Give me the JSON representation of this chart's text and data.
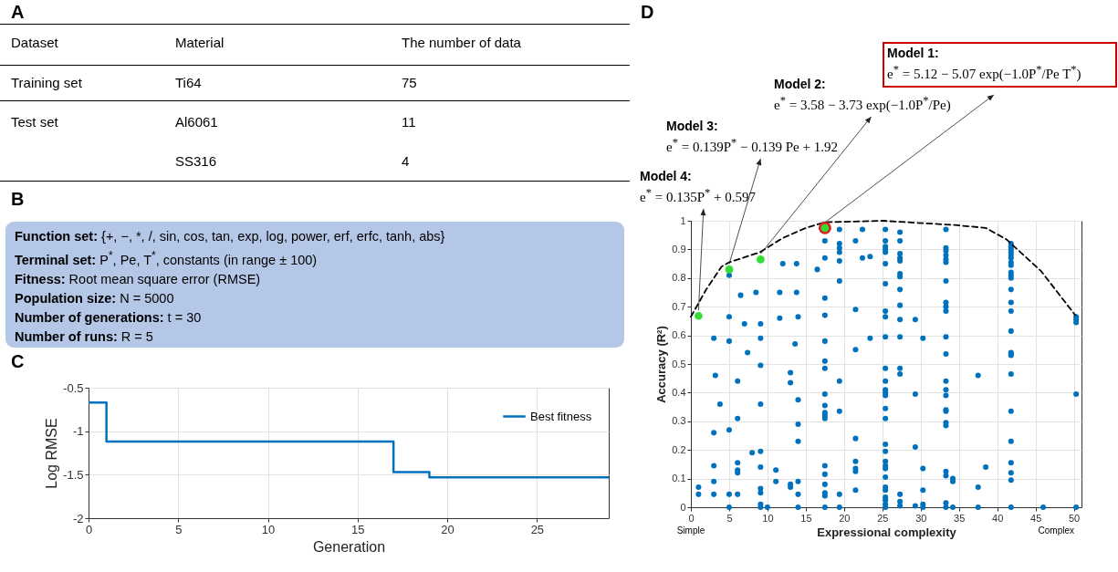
{
  "chart_data": [
    {
      "type": "other",
      "title": "A",
      "categories": [
        "Dataset",
        "Material",
        "The number of data"
      ],
      "annotations": [
        "Training set",
        "Ti64",
        "75",
        "Test set",
        "Al6061",
        "11",
        null,
        "SS316",
        "4"
      ]
    },
    {
      "type": "other",
      "title": "B",
      "annotations": [
        "Function set: {+, −, *, /, sin, cos, tan, exp, log, power, erf, erfc, tanh, abs}",
        "Terminal set: P$^{*}$, Pe, T$^{*}$, constants (in range ± 100)",
        "Fitness: Root mean square error (RMSE)",
        "Population size: N = 5000",
        "Number of generations: t = 30",
        "Number of runs: R = 5"
      ]
    },
    {
      "type": "step",
      "title": "C",
      "xlabel": "Generation",
      "ylabel": "Log RMSE",
      "xlim": [
        0,
        29
      ],
      "xticks": [
        0,
        5,
        10,
        15,
        20,
        25
      ],
      "ylim": [
        -2,
        -0.5
      ],
      "yticks": [
        -2,
        -1.5,
        -1,
        -0.5
      ],
      "grid": true,
      "legend": "top right",
      "series": [
        {
          "name": "Best fitness",
          "color": "#0072bd",
          "x": [
            0,
            1,
            17,
            19,
            29
          ],
          "values": [
            -0.67,
            -1.12,
            -1.47,
            -1.53,
            -1.53
          ]
        }
      ]
    },
    {
      "type": "scatter",
      "title": "D",
      "xlabel": "Expressional complexity",
      "ylabel": "Accuracy (R²)",
      "xlim": [
        0,
        51
      ],
      "xticks": [
        0,
        5,
        10,
        15,
        20,
        25,
        30,
        35,
        40,
        45,
        50
      ],
      "ylim": [
        0,
        1
      ],
      "yticks": [
        0,
        0.1,
        0.2,
        0.3,
        0.4,
        0.5,
        0.6,
        0.7,
        0.8,
        0.9,
        1
      ],
      "grid": true,
      "annotations": [
        {
          "text": "Model 1:\ne$^{*}$ = 5.12 − 5.07 exp(−1.0P$^{*}$/Pe T$^{*}$)",
          "x": 17.5,
          "y": 0.975
        },
        {
          "text": "Model 2:\ne$^{*}$ = 3.58 − 3.73 exp(−1.0P$^{*}$/Pe)",
          "x": 9.1,
          "y": 0.865
        },
        {
          "text": "Model 3:\ne$^{*}$ = 0.139P$^{*}$ − 0.139 Pe + 1.92",
          "x": 5,
          "y": 0.83
        },
        {
          "text": "Model 4:\ne$^{*}$ = 0.135P$^{*}$ + 0.597",
          "x": 1,
          "y": 0.668
        },
        "Simple",
        "Complex"
      ],
      "series": [
        {
          "type": "scatter",
          "marker": "circle",
          "color": "#0072bd",
          "x": [
            1,
            1,
            3,
            3,
            3,
            3,
            3,
            3.2,
            3.8,
            5,
            5,
            5,
            5,
            5,
            5,
            6.1,
            6.1,
            6.1,
            6.1,
            6.1,
            6.1,
            6.5,
            7,
            7.4,
            8,
            8.5,
            9.1,
            9.1,
            9.1,
            9.1,
            9.1,
            9.1,
            9.1,
            9.1,
            9.1,
            9.1,
            10,
            11.1,
            11.1,
            11.6,
            11.6,
            12,
            13,
            13,
            13,
            13,
            13.6,
            13.8,
            13.8,
            14,
            14,
            14,
            14,
            14,
            14,
            14,
            16.5,
            17.5,
            17.5,
            17.5,
            17.5,
            17.5,
            17.5,
            17.5,
            17.5,
            17.5,
            17.5,
            17.5,
            17.5,
            17.5,
            17.5,
            17.5,
            17.5,
            17.5,
            17.5,
            19.4,
            19.4,
            19.4,
            19.4,
            19.4,
            19.4,
            19.4,
            19.4,
            19.4,
            19.4,
            21.5,
            21.5,
            21.5,
            21.5,
            21.5,
            21.5,
            21.5,
            21.5,
            22.4,
            22.4,
            23.4,
            23.4,
            25.4,
            25.4,
            25.4,
            25.4,
            25.4,
            25.4,
            25.4,
            25.4,
            25.4,
            25.4,
            25.4,
            25.4,
            25.4,
            25.4,
            25.4,
            25.4,
            25.4,
            25.4,
            25.4,
            25.4,
            25.4,
            25.4,
            25.4,
            25.4,
            25.4,
            25.4,
            25.4,
            25.4,
            25.4,
            27.3,
            27.3,
            27.3,
            27.3,
            27.3,
            27.3,
            27.3,
            27.3,
            27.3,
            27.3,
            27.3,
            27.3,
            27.3,
            27.3,
            27.3,
            27.3,
            29.3,
            29.3,
            29.3,
            29.3,
            30.3,
            30.3,
            30.3,
            30.3,
            30.3,
            33.3,
            33.3,
            33.3,
            33.3,
            33.3,
            33.3,
            33.3,
            33.3,
            33.3,
            33.3,
            33.3,
            33.3,
            33.3,
            33.3,
            33.3,
            33.3,
            33.3,
            33.3,
            33.3,
            33.3,
            33.3,
            33.3,
            33.3,
            34.2,
            34.2,
            34.2,
            37.5,
            37.5,
            37.5,
            38.5,
            41.8,
            41.8,
            41.8,
            41.8,
            41.8,
            41.8,
            41.8,
            41.8,
            41.8,
            41.8,
            41.8,
            41.8,
            41.8,
            41.8,
            41.8,
            41.8,
            41.8,
            41.8,
            41.8,
            41.8,
            41.8,
            41.8,
            41.8,
            41.8,
            41.8,
            46,
            50.3,
            50.3,
            50.3,
            50.3,
            50.3
          ],
          "values": [
            0.07,
            0.045,
            0.59,
            0.26,
            0.145,
            0.09,
            0.045,
            0.46,
            0.36,
            0.81,
            0.665,
            0.58,
            0.27,
            0.045,
            0,
            0.44,
            0.31,
            0.155,
            0.13,
            0.12,
            0.045,
            0.74,
            0.64,
            0.54,
            0.19,
            0.75,
            0.64,
            0.59,
            0.495,
            0.36,
            0.195,
            0.14,
            0.065,
            0.05,
            0.01,
            0,
            0,
            0.13,
            0.09,
            0.75,
            0.66,
            0.85,
            0.47,
            0.435,
            0.08,
            0.07,
            0.57,
            0.85,
            0.75,
            0.665,
            0.375,
            0.29,
            0.23,
            0.09,
            0.045,
            0,
            0.83,
            0.93,
            0.87,
            0.73,
            0.67,
            0.58,
            0.51,
            0.485,
            0.395,
            0.355,
            0.33,
            0.32,
            0.31,
            0.145,
            0.115,
            0.08,
            0.05,
            0.04,
            0,
            0.97,
            0.92,
            0.905,
            0.89,
            0.86,
            0.79,
            0.44,
            0.335,
            0.045,
            0,
            0.93,
            0.69,
            0.55,
            0.24,
            0.16,
            0.135,
            0.125,
            0.06,
            0.97,
            0.87,
            0.875,
            0.59,
            0.97,
            0.93,
            0.91,
            0.9,
            0.89,
            0.85,
            0.78,
            0.685,
            0.665,
            0.595,
            0.485,
            0.44,
            0.41,
            0.4,
            0.39,
            0.345,
            0.31,
            0.22,
            0.195,
            0.16,
            0.145,
            0.135,
            0.105,
            0.07,
            0.06,
            0.035,
            0.025,
            0.01,
            0,
            0.96,
            0.93,
            0.885,
            0.87,
            0.86,
            0.815,
            0.805,
            0.76,
            0.705,
            0.655,
            0.595,
            0.485,
            0.465,
            0.045,
            0.02,
            0.005,
            0.655,
            0.395,
            0.21,
            0.005,
            0.59,
            0.135,
            0.06,
            0.01,
            0,
            0.97,
            0.905,
            0.895,
            0.88,
            0.865,
            0.855,
            0.79,
            0.715,
            0.7,
            0.685,
            0.595,
            0.535,
            0.44,
            0.41,
            0.39,
            0.34,
            0.335,
            0.295,
            0.285,
            0.125,
            0.11,
            0.015,
            0,
            0.1,
            0.09,
            0,
            0.46,
            0.07,
            0,
            0.14,
            0.92,
            0.91,
            0.9,
            0.89,
            0.88,
            0.87,
            0.855,
            0.845,
            0.82,
            0.81,
            0.8,
            0.76,
            0.715,
            0.685,
            0.615,
            0.54,
            0.535,
            0.53,
            0.465,
            0.335,
            0.23,
            0.155,
            0.12,
            0.095,
            0,
            0,
            0.665,
            0.655,
            0.645,
            0.395,
            0
          ]
        },
        {
          "type": "line",
          "color": "#000000",
          "line_style": "dashed",
          "x": [
            0,
            2,
            4,
            5,
            9,
            12,
            15,
            17.5,
            25,
            34.5,
            38.5,
            41.2,
            45.7,
            50.2
          ],
          "values": [
            0.665,
            0.76,
            0.84,
            0.855,
            0.89,
            0.94,
            0.975,
            0.995,
            1,
            0.985,
            0.975,
            0.935,
            0.825,
            0.67
          ]
        },
        {
          "type": "scatter",
          "marker": "circle",
          "color": "#e02020",
          "x": [
            17.5
          ],
          "values": [
            0.975
          ]
        },
        {
          "type": "scatter",
          "marker": "circle",
          "color": "#33dd33",
          "x": [
            1,
            5,
            9.1,
            17.5
          ],
          "values": [
            0.668,
            0.83,
            0.865,
            0.975
          ]
        }
      ]
    }
  ]
}
